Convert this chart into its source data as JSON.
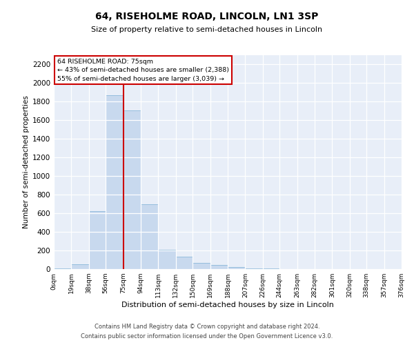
{
  "title": "64, RISEHOLME ROAD, LINCOLN, LN1 3SP",
  "subtitle": "Size of property relative to semi-detached houses in Lincoln",
  "xlabel": "Distribution of semi-detached houses by size in Lincoln",
  "ylabel": "Number of semi-detached properties",
  "property_size": 75,
  "property_label": "64 RISEHOLME ROAD: 75sqm",
  "pct_smaller": 43,
  "n_smaller": 2388,
  "pct_larger": 55,
  "n_larger": 3039,
  "bar_color": "#c8d9ee",
  "bar_edge_color": "#7aafd4",
  "vline_color": "#cc0000",
  "annotation_box_color": "#cc0000",
  "background_color": "#e8eef8",
  "bin_edges": [
    0,
    19,
    38,
    56,
    75,
    94,
    113,
    132,
    150,
    169,
    188,
    207,
    226,
    244,
    263,
    282,
    301,
    320,
    338,
    357,
    376
  ],
  "bin_labels": [
    "0sqm",
    "19sqm",
    "38sqm",
    "56sqm",
    "75sqm",
    "94sqm",
    "113sqm",
    "132sqm",
    "150sqm",
    "169sqm",
    "188sqm",
    "207sqm",
    "226sqm",
    "244sqm",
    "263sqm",
    "282sqm",
    "301sqm",
    "320sqm",
    "338sqm",
    "357sqm",
    "376sqm"
  ],
  "bar_heights": [
    4,
    50,
    620,
    1870,
    1710,
    700,
    210,
    130,
    70,
    45,
    25,
    10,
    4,
    0,
    0,
    0,
    0,
    0,
    0,
    0
  ],
  "ylim": [
    0,
    2300
  ],
  "yticks": [
    0,
    200,
    400,
    600,
    800,
    1000,
    1200,
    1400,
    1600,
    1800,
    2000,
    2200
  ],
  "footnote1": "Contains HM Land Registry data © Crown copyright and database right 2024.",
  "footnote2": "Contains public sector information licensed under the Open Government Licence v3.0."
}
